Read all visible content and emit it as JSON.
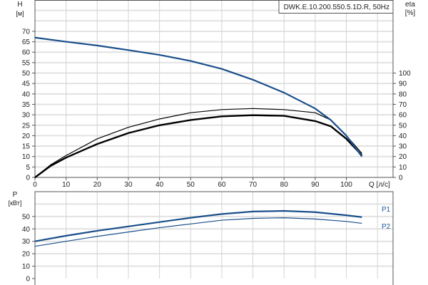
{
  "chart_data": [
    {
      "type": "line",
      "title": "DWK.E.10.200.550.5.1D.R, 50Hz",
      "xlabel": "Q [л/с]",
      "ylabel_left": "H",
      "ylabel_left_unit": "[м]",
      "ylabel_right": "eta",
      "ylabel_right_unit": "[%]",
      "xlim": [
        0,
        115
      ],
      "ylim_left": [
        0,
        85
      ],
      "ylim_right": [
        0,
        170
      ],
      "x_ticks": [
        0,
        10,
        20,
        30,
        40,
        50,
        60,
        70,
        80,
        90,
        100
      ],
      "y_ticks_left": [
        0,
        5,
        10,
        15,
        20,
        25,
        30,
        35,
        40,
        45,
        50,
        55,
        60,
        65,
        70
      ],
      "y_ticks_right": [
        0,
        10,
        20,
        30,
        40,
        50,
        60,
        70,
        80,
        90,
        100
      ],
      "grid": true,
      "colors": {
        "head": "#1a4f8a",
        "eta": "#000000"
      },
      "series": [
        {
          "axis": "left",
          "x": [
            0,
            10,
            20,
            30,
            40,
            50,
            60,
            70,
            80,
            90,
            95,
            100,
            105
          ],
          "y": [
            67,
            65,
            63.2,
            61,
            58.7,
            55.8,
            52,
            46.8,
            40.6,
            33,
            27.5,
            20,
            10
          ]
        },
        {
          "axis": "right",
          "x": [
            0,
            5,
            10,
            20,
            30,
            40,
            50,
            60,
            70,
            80,
            90,
            95,
            100,
            105
          ],
          "y": [
            0,
            12,
            21,
            37,
            48,
            56,
            62,
            65,
            66,
            65,
            62,
            55,
            40,
            23
          ]
        },
        {
          "axis": "right",
          "x": [
            0,
            5,
            10,
            20,
            30,
            40,
            50,
            60,
            70,
            80,
            90,
            95,
            100,
            105
          ],
          "y": [
            0,
            11,
            19,
            32,
            42.5,
            50,
            55,
            58.5,
            59.6,
            59,
            54,
            49,
            37,
            21
          ]
        }
      ]
    },
    {
      "type": "line",
      "ylabel": "P",
      "ylabel_unit": "[кВт]",
      "xlim": [
        0,
        115
      ],
      "ylim": [
        0,
        70
      ],
      "y_ticks": [
        0,
        10,
        20,
        30,
        40,
        50
      ],
      "grid": true,
      "colors": {
        "P1": "#1a4f8a",
        "P2": "#1a4f8a"
      },
      "series": [
        {
          "name": "P1",
          "x": [
            0,
            10,
            20,
            30,
            40,
            50,
            60,
            70,
            80,
            90,
            100,
            105
          ],
          "y": [
            30,
            34.5,
            38.5,
            42,
            45.5,
            49,
            52,
            54,
            54.5,
            53.5,
            51,
            49.5
          ]
        },
        {
          "name": "P2",
          "x": [
            0,
            10,
            20,
            30,
            40,
            50,
            60,
            70,
            80,
            90,
            100,
            105
          ],
          "y": [
            26,
            30,
            34,
            37.5,
            41,
            44,
            47,
            48.5,
            49,
            48,
            46,
            44.5
          ]
        }
      ]
    }
  ]
}
